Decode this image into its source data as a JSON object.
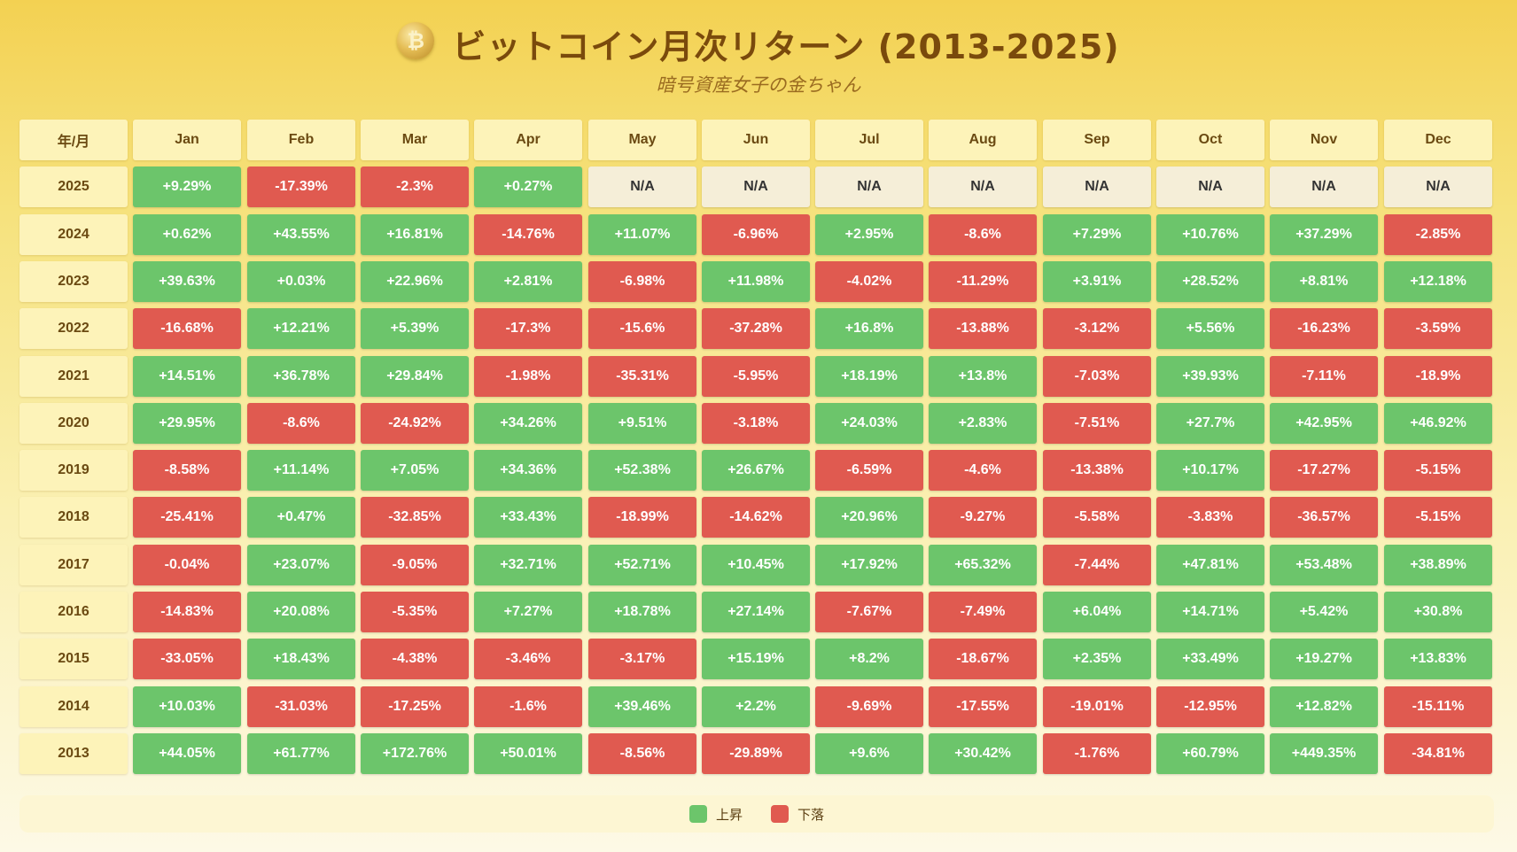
{
  "header": {
    "coin_glyph": "₿",
    "title": "ビットコイン月次リターン (2013-2025)",
    "subtitle": "暗号資産女子の金ちゃん"
  },
  "colors": {
    "positive": "#6cc56b",
    "negative": "#e05a50",
    "na": "#f5eed8",
    "header_cell": "#fdf3b9"
  },
  "legend": {
    "up_label": "上昇",
    "down_label": "下落"
  },
  "chart_data": {
    "type": "table",
    "corner_label": "年/月",
    "columns": [
      "Jan",
      "Feb",
      "Mar",
      "Apr",
      "May",
      "Jun",
      "Jul",
      "Aug",
      "Sep",
      "Oct",
      "Nov",
      "Dec"
    ],
    "rows": [
      {
        "year": "2025",
        "values": [
          "+9.29%",
          "-17.39%",
          "-2.3%",
          "+0.27%",
          "N/A",
          "N/A",
          "N/A",
          "N/A",
          "N/A",
          "N/A",
          "N/A",
          "N/A"
        ]
      },
      {
        "year": "2024",
        "values": [
          "+0.62%",
          "+43.55%",
          "+16.81%",
          "-14.76%",
          "+11.07%",
          "-6.96%",
          "+2.95%",
          "-8.6%",
          "+7.29%",
          "+10.76%",
          "+37.29%",
          "-2.85%"
        ]
      },
      {
        "year": "2023",
        "values": [
          "+39.63%",
          "+0.03%",
          "+22.96%",
          "+2.81%",
          "-6.98%",
          "+11.98%",
          "-4.02%",
          "-11.29%",
          "+3.91%",
          "+28.52%",
          "+8.81%",
          "+12.18%"
        ]
      },
      {
        "year": "2022",
        "values": [
          "-16.68%",
          "+12.21%",
          "+5.39%",
          "-17.3%",
          "-15.6%",
          "-37.28%",
          "+16.8%",
          "-13.88%",
          "-3.12%",
          "+5.56%",
          "-16.23%",
          "-3.59%"
        ]
      },
      {
        "year": "2021",
        "values": [
          "+14.51%",
          "+36.78%",
          "+29.84%",
          "-1.98%",
          "-35.31%",
          "-5.95%",
          "+18.19%",
          "+13.8%",
          "-7.03%",
          "+39.93%",
          "-7.11%",
          "-18.9%"
        ]
      },
      {
        "year": "2020",
        "values": [
          "+29.95%",
          "-8.6%",
          "-24.92%",
          "+34.26%",
          "+9.51%",
          "-3.18%",
          "+24.03%",
          "+2.83%",
          "-7.51%",
          "+27.7%",
          "+42.95%",
          "+46.92%"
        ]
      },
      {
        "year": "2019",
        "values": [
          "-8.58%",
          "+11.14%",
          "+7.05%",
          "+34.36%",
          "+52.38%",
          "+26.67%",
          "-6.59%",
          "-4.6%",
          "-13.38%",
          "+10.17%",
          "-17.27%",
          "-5.15%"
        ]
      },
      {
        "year": "2018",
        "values": [
          "-25.41%",
          "+0.47%",
          "-32.85%",
          "+33.43%",
          "-18.99%",
          "-14.62%",
          "+20.96%",
          "-9.27%",
          "-5.58%",
          "-3.83%",
          "-36.57%",
          "-5.15%"
        ]
      },
      {
        "year": "2017",
        "values": [
          "-0.04%",
          "+23.07%",
          "-9.05%",
          "+32.71%",
          "+52.71%",
          "+10.45%",
          "+17.92%",
          "+65.32%",
          "-7.44%",
          "+47.81%",
          "+53.48%",
          "+38.89%"
        ]
      },
      {
        "year": "2016",
        "values": [
          "-14.83%",
          "+20.08%",
          "-5.35%",
          "+7.27%",
          "+18.78%",
          "+27.14%",
          "-7.67%",
          "-7.49%",
          "+6.04%",
          "+14.71%",
          "+5.42%",
          "+30.8%"
        ]
      },
      {
        "year": "2015",
        "values": [
          "-33.05%",
          "+18.43%",
          "-4.38%",
          "-3.46%",
          "-3.17%",
          "+15.19%",
          "+8.2%",
          "-18.67%",
          "+2.35%",
          "+33.49%",
          "+19.27%",
          "+13.83%"
        ]
      },
      {
        "year": "2014",
        "values": [
          "+10.03%",
          "-31.03%",
          "-17.25%",
          "-1.6%",
          "+39.46%",
          "+2.2%",
          "-9.69%",
          "-17.55%",
          "-19.01%",
          "-12.95%",
          "+12.82%",
          "-15.11%"
        ]
      },
      {
        "year": "2013",
        "values": [
          "+44.05%",
          "+61.77%",
          "+172.76%",
          "+50.01%",
          "-8.56%",
          "-29.89%",
          "+9.6%",
          "+30.42%",
          "-1.76%",
          "+60.79%",
          "+449.35%",
          "-34.81%"
        ]
      }
    ]
  }
}
